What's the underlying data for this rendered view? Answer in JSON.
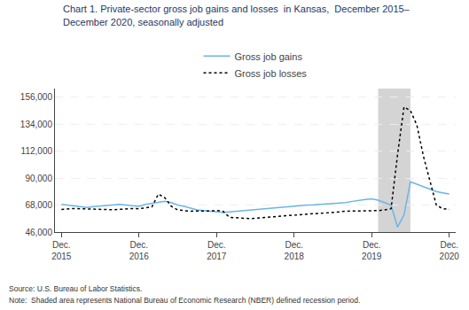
{
  "chart_data": {
    "type": "line",
    "title": "Chart 1. Private-sector gross job gains and losses  in Kansas,  December 2015–\nDecember 2020, seasonally adjusted",
    "annotations": [
      "Source: U.S. Bureau of Labor Statistics.",
      "Note:  Shaded area represents National Bureau of Economic Research (NBER) defined recession period."
    ],
    "categories": [
      "Dec.\n2015",
      null,
      null,
      null,
      null,
      null,
      null,
      null,
      null,
      null,
      null,
      null,
      "Dec.\n2016",
      null,
      null,
      null,
      null,
      null,
      null,
      null,
      null,
      null,
      null,
      null,
      "Dec.\n2017",
      null,
      null,
      null,
      null,
      null,
      null,
      null,
      null,
      null,
      null,
      null,
      "Dec.\n2018",
      null,
      null,
      null,
      null,
      null,
      null,
      null,
      null,
      null,
      null,
      null,
      "Dec.\n2019",
      null,
      null,
      null,
      null,
      null,
      null,
      null,
      null,
      null,
      null,
      null,
      "Dec.\n2020"
    ],
    "series": [
      {
        "name": "Gross job gains",
        "color": "#6ab4e8",
        "line_style": "solid",
        "values": [
          68500,
          67800,
          67200,
          66500,
          66000,
          66800,
          67200,
          67800,
          68200,
          68500,
          68000,
          67500,
          67000,
          68500,
          69500,
          70500,
          71000,
          70000,
          68000,
          67000,
          65500,
          64000,
          63500,
          63000,
          62500,
          62000,
          62500,
          63000,
          63500,
          64000,
          64500,
          65000,
          65500,
          66000,
          66000,
          66500,
          67000,
          67500,
          68000,
          68200,
          68500,
          68800,
          69000,
          69500,
          70000,
          71000,
          72000,
          72500,
          73000,
          72000,
          70000,
          68000,
          50000,
          60000,
          87000,
          85000,
          83000,
          81000,
          79000,
          78000,
          77000
        ]
      },
      {
        "name": "Gross job losses",
        "color": "#000000",
        "line_style": "dotted",
        "values": [
          64500,
          65000,
          65200,
          65000,
          64800,
          64500,
          64200,
          64000,
          64200,
          64500,
          65000,
          65200,
          65000,
          65500,
          66500,
          77000,
          74000,
          67000,
          64000,
          63500,
          63000,
          63200,
          63000,
          63200,
          63500,
          63000,
          58000,
          57500,
          57200,
          57000,
          57200,
          57500,
          58000,
          58500,
          59000,
          59500,
          59800,
          60000,
          60500,
          61000,
          61200,
          61500,
          62000,
          62500,
          63000,
          63000,
          63000,
          63000,
          63000,
          63500,
          64000,
          65000,
          109000,
          148000,
          145000,
          133000,
          108000,
          88000,
          68000,
          65000,
          64500
        ]
      }
    ],
    "shade": {
      "start": 49,
      "end": 54,
      "color": "#d4d4d4"
    },
    "ylim": [
      46000,
      163000
    ],
    "yticks": [
      {
        "value": 46000,
        "label": "46,000"
      },
      {
        "value": 68000,
        "label": "68,000"
      },
      {
        "value": 90000,
        "label": "90,000"
      },
      {
        "value": 112000,
        "label": "112,000"
      },
      {
        "value": 134000,
        "label": "134,000"
      },
      {
        "value": 156000,
        "label": "156,000"
      }
    ],
    "grid": true,
    "legend": "upper center"
  }
}
